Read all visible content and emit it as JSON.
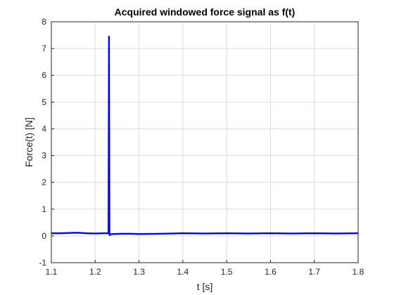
{
  "chart_data": {
    "type": "line",
    "title": "Acquired windowed force signal as f(t)",
    "xlabel": "t [s]",
    "ylabel": "Force(t) [N]",
    "xlim": [
      1.1,
      1.8
    ],
    "ylim": [
      -1,
      8
    ],
    "xticks": [
      "1.1",
      "1.2",
      "1.3",
      "1.4",
      "1.5",
      "1.6",
      "1.7",
      "1.8"
    ],
    "yticks": [
      "-1",
      "0",
      "1",
      "2",
      "3",
      "4",
      "5",
      "6",
      "7",
      "8"
    ],
    "grid": true,
    "line_color": "#0000ff",
    "series": [
      {
        "x": [
          1.1,
          1.12,
          1.14,
          1.16,
          1.18,
          1.2,
          1.22,
          1.228,
          1.2305,
          1.2315,
          1.2325,
          1.2335,
          1.234,
          1.24,
          1.26,
          1.28,
          1.3,
          1.35,
          1.4,
          1.45,
          1.5,
          1.55,
          1.6,
          1.65,
          1.7,
          1.75,
          1.8
        ],
        "y": [
          0.1,
          0.1,
          0.11,
          0.12,
          0.1,
          0.09,
          0.1,
          0.1,
          0.1,
          7.45,
          0.05,
          0.03,
          0.06,
          0.07,
          0.08,
          0.08,
          0.07,
          0.08,
          0.1,
          0.09,
          0.1,
          0.09,
          0.1,
          0.09,
          0.1,
          0.09,
          0.1
        ]
      }
    ]
  }
}
